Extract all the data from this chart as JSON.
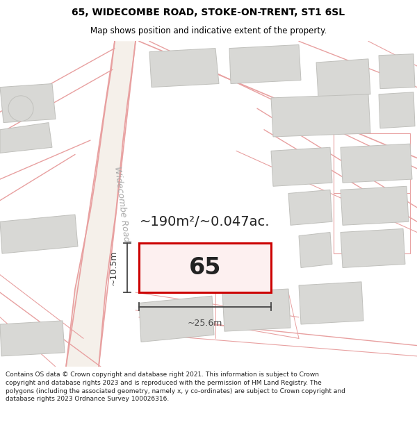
{
  "title_line1": "65, WIDECOMBE ROAD, STOKE-ON-TRENT, ST1 6SL",
  "title_line2": "Map shows position and indicative extent of the property.",
  "footer_text": "Contains OS data © Crown copyright and database right 2021. This information is subject to Crown copyright and database rights 2023 and is reproduced with the permission of HM Land Registry. The polygons (including the associated geometry, namely x, y co-ordinates) are subject to Crown copyright and database rights 2023 Ordnance Survey 100026316.",
  "street_label": "Widecombe Road",
  "property_number": "65",
  "area_text": "~190m²/~0.047ac.",
  "dim_width": "~25.6m",
  "dim_height": "~10.5m",
  "map_bg": "#ffffff",
  "road_line_color": "#e8a0a0",
  "road_fill_color": "#f5f0ea",
  "building_fill": "#d8d8d5",
  "building_edge": "#c0c0bc",
  "prop_fill": "#fdf0f0",
  "prop_edge": "#cc0000",
  "dim_color": "#444444",
  "text_color": "#222222",
  "street_color": "#aaaaaa",
  "title_fontsize": 10,
  "subtitle_fontsize": 8.5,
  "footer_fontsize": 6.5,
  "prop_num_fontsize": 24,
  "area_fontsize": 14,
  "dim_fontsize": 9,
  "street_fontsize": 9
}
